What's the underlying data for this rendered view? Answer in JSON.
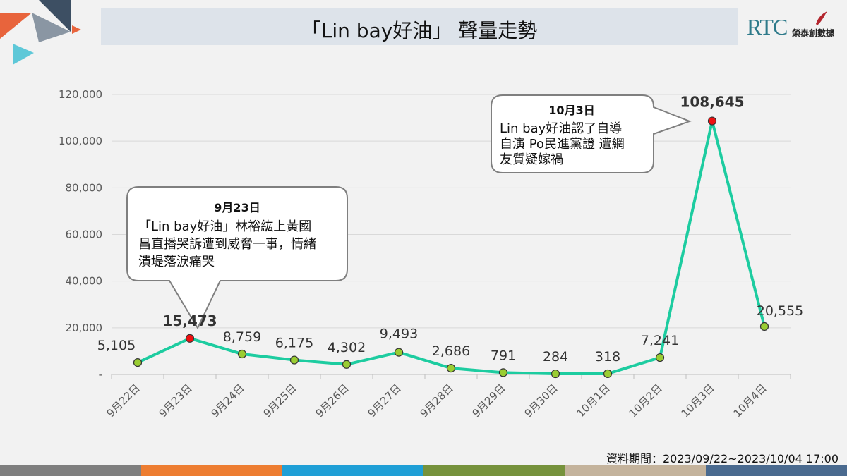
{
  "header": {
    "title": "「Lin bay好油」 聲量走勢",
    "brand_logo": "RTC",
    "brand_name": "榮泰創數據"
  },
  "colors": {
    "line": "#1dcca0",
    "point_normal": "#9acd32",
    "point_peak": "#e11",
    "bottom_stripes": [
      "#7f7f7f",
      "#ed7d31",
      "#1f9fd6",
      "#76923c",
      "#c4b39c",
      "#4a6a8f"
    ]
  },
  "chart_data": {
    "type": "line",
    "title": "「Lin bay好油」 聲量走勢",
    "categories": [
      "9月22日",
      "9月23日",
      "9月24日",
      "9月25日",
      "9月26日",
      "9月27日",
      "9月28日",
      "9月29日",
      "9月30日",
      "10月1日",
      "10月2日",
      "10月3日",
      "10月4日"
    ],
    "values": [
      5105,
      15473,
      8759,
      6175,
      4302,
      9493,
      2686,
      791,
      284,
      318,
      7241,
      108645,
      20555
    ],
    "value_labels": [
      "5,105",
      "15,473",
      "8,759",
      "6,175",
      "4,302",
      "9,493",
      "2,686",
      "791",
      "284",
      "318",
      "7,241",
      "108,645",
      "20,555"
    ],
    "highlight_indices": [
      1,
      11
    ],
    "ylim": [
      0,
      120000
    ],
    "yticks": [
      0,
      20000,
      40000,
      60000,
      80000,
      100000,
      120000
    ],
    "ytick_labels": [
      "-",
      "20,000",
      "40,000",
      "60,000",
      "80,000",
      "100,000",
      "120,000"
    ],
    "grid": true,
    "legend": "none",
    "annotations": [
      {
        "index": 1,
        "title": "9月23日",
        "lines": [
          "「Lin bay好油」林裕紘上黃國",
          "昌直播哭訴遭到威脅一事，情緒",
          "潰堤落淚痛哭"
        ]
      },
      {
        "index": 11,
        "title": "10月3日",
        "lines": [
          "Lin bay好油認了自導",
          "自演  Po民進黨證 遭網",
          "友質疑嫁禍"
        ]
      }
    ]
  },
  "footer": {
    "source": "資料期間：2023/09/22~2023/10/04 17:00"
  }
}
